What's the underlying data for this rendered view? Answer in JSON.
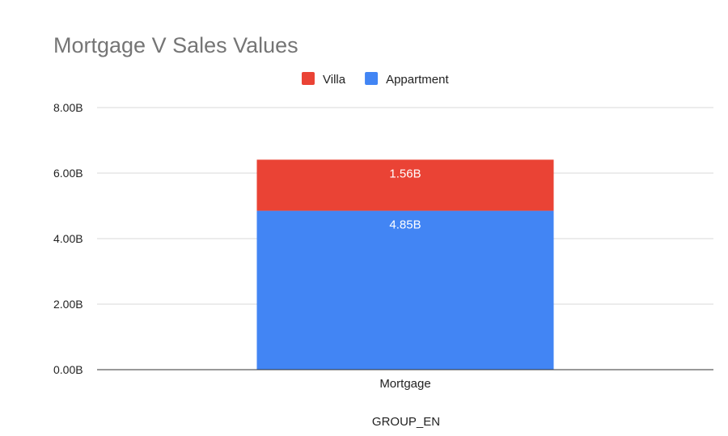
{
  "chart_data": {
    "type": "bar",
    "stacked": true,
    "title": "Mortgage V Sales Values",
    "xlabel": "GROUP_EN",
    "ylabel": "",
    "categories": [
      "Mortgage"
    ],
    "series": [
      {
        "name": "Appartment",
        "values": [
          4.85
        ],
        "labels": [
          "4.85B"
        ],
        "color": "#4285F4"
      },
      {
        "name": "Villa",
        "values": [
          1.56
        ],
        "labels": [
          "1.56B"
        ],
        "color": "#EA4335"
      }
    ],
    "legend_order": [
      "Villa",
      "Appartment"
    ],
    "ylim": [
      0,
      8
    ],
    "yticks": [
      0,
      2,
      4,
      6,
      8
    ],
    "ytick_labels": [
      "0.00B",
      "2.00B",
      "4.00B",
      "6.00B",
      "8.00B"
    ],
    "grid": true,
    "legend_position": "top-center"
  }
}
